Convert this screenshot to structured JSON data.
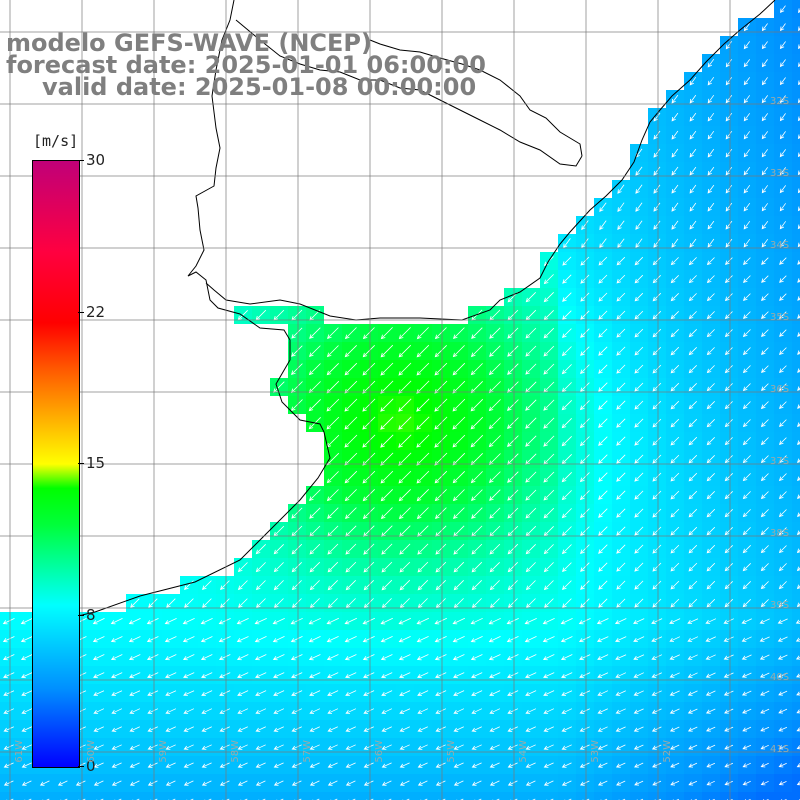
{
  "title": {
    "line1": "modelo GEFS-WAVE (NCEP)",
    "line2": "forecast date: 2025-01-01 06:00:00",
    "line3": "valid date: 2025-01-08 00:00:00"
  },
  "colorbar": {
    "unit": "[m/s]",
    "ticks": [
      "30",
      "22",
      "15",
      "8",
      "0"
    ],
    "tick_values": [
      30,
      22,
      15,
      8,
      0
    ],
    "min": 0,
    "max": 30,
    "colors": [
      "#0000ff",
      "#0090ff",
      "#00ffff",
      "#00ff3a",
      "#00ff00",
      "#ffff00",
      "#ffaa00",
      "#ff5500",
      "#ff0000",
      "#ff0040",
      "#c00078"
    ]
  },
  "lat_labels": [
    "32S",
    "33S",
    "34S",
    "35S",
    "36S",
    "37S",
    "38S",
    "39S",
    "40S",
    "41S"
  ],
  "lon_labels": [
    "61W",
    "60W",
    "59W",
    "58W",
    "57W",
    "56W",
    "55W",
    "54W",
    "53W",
    "52W"
  ],
  "wind_field": {
    "field_description": "surface wind speed with direction arrows",
    "dominant_direction": "northeasterly (arrows point south-west)",
    "max_speed_region": "Rio de la Plata estuary, about 13-14 m/s",
    "open_ocean_speed": "about 5-9 m/s"
  },
  "style": {
    "land_color": "#ffffff",
    "coastline_color": "#000000",
    "grid_color": "#777777",
    "arrow_color": "#ffffff",
    "title_color": "#7f7f7f"
  }
}
